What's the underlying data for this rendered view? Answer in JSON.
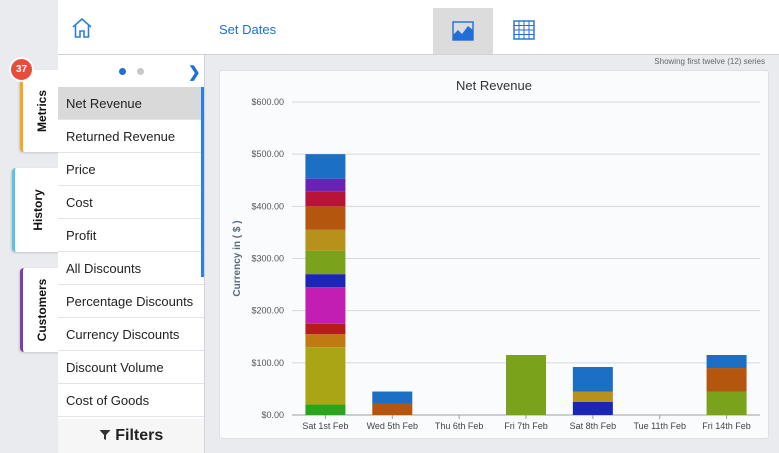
{
  "topbar": {
    "set_dates_label": "Set Dates",
    "icons": [
      "home-icon",
      "area-chart-icon",
      "table-grid-icon"
    ]
  },
  "side_tabs": {
    "metrics": "Metrics",
    "history": "History",
    "customers": "Customers",
    "badge_count": "37"
  },
  "metrics": {
    "pager_pages": 2,
    "pager_current": 1,
    "items": [
      "Net Revenue",
      "Returned Revenue",
      "Price",
      "Cost",
      "Profit",
      "All Discounts",
      "Percentage Discounts",
      "Currency Discounts",
      "Discount Volume",
      "Cost of Goods"
    ],
    "selected": "Net Revenue",
    "filters_label": "Filters"
  },
  "series_note": "Showing first twelve (12) series",
  "chart_data": {
    "type": "bar",
    "stacked": true,
    "title": "Net Revenue",
    "ylabel": "Currency in ( $ )",
    "xlabel": "",
    "ylim": [
      0,
      600
    ],
    "yticks": [
      "$0.00",
      "$100.00",
      "$200.00",
      "$300.00",
      "$400.00",
      "$500.00",
      "$600.00"
    ],
    "categories": [
      "Sat 1st Feb",
      "Wed 5th Feb",
      "Thu 6th Feb",
      "Fri 7th Feb",
      "Sat 8th Feb",
      "Tue 11th Feb",
      "Fri 14th Feb"
    ],
    "grid": true,
    "colors": [
      "#2aa41c",
      "#a9a515",
      "#c07a12",
      "#b71c1c",
      "#c21eb4",
      "#1926b6",
      "#7aa21b",
      "#b8911a",
      "#b5560e",
      "#b81438",
      "#6a22b4",
      "#1b6fc4"
    ],
    "series": [
      {
        "values": [
          20,
          0,
          0,
          0,
          0,
          0,
          0
        ]
      },
      {
        "values": [
          110,
          0,
          0,
          0,
          0,
          0,
          0
        ]
      },
      {
        "values": [
          25,
          0,
          0,
          0,
          0,
          0,
          0
        ]
      },
      {
        "values": [
          20,
          0,
          0,
          0,
          0,
          0,
          0
        ]
      },
      {
        "values": [
          70,
          0,
          0,
          0,
          0,
          0,
          0
        ]
      },
      {
        "values": [
          25,
          0,
          0,
          0,
          25,
          0,
          0
        ]
      },
      {
        "values": [
          45,
          0,
          0,
          115,
          0,
          0,
          45
        ]
      },
      {
        "values": [
          40,
          0,
          0,
          0,
          20,
          0,
          0
        ]
      },
      {
        "values": [
          45,
          22,
          0,
          0,
          0,
          0,
          45
        ]
      },
      {
        "values": [
          28,
          0,
          0,
          0,
          0,
          0,
          0
        ]
      },
      {
        "values": [
          25,
          0,
          0,
          0,
          0,
          0,
          0
        ]
      },
      {
        "values": [
          47,
          23,
          0,
          0,
          47,
          0,
          25
        ]
      }
    ]
  }
}
